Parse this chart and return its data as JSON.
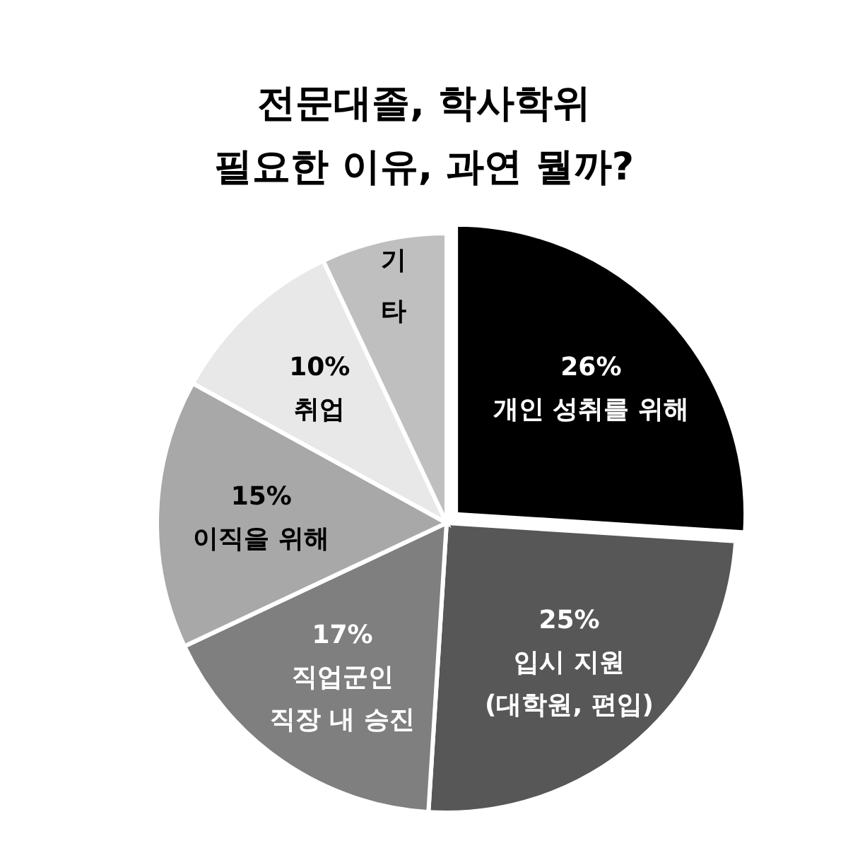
{
  "chart_data": {
    "type": "pie",
    "title": "전문대졸, 학사학위",
    "subtitle": "필요한 이유, 과연 뭘까?",
    "categories": [
      "개인 성취를 위해",
      "입시 지원\n(대학원, 편입)",
      "직업군인\n직장 내 승진",
      "이직을 위해",
      "취업",
      "기타"
    ],
    "values": [
      26,
      25,
      17,
      15,
      10,
      7
    ],
    "value_labels": [
      "26%",
      "25%",
      "17%",
      "15%",
      "10%",
      null
    ],
    "colors": [
      "#000000",
      "#575757",
      "#7f7f7f",
      "#a8a8a8",
      "#e8e8e8",
      "#bfbfbf"
    ]
  }
}
